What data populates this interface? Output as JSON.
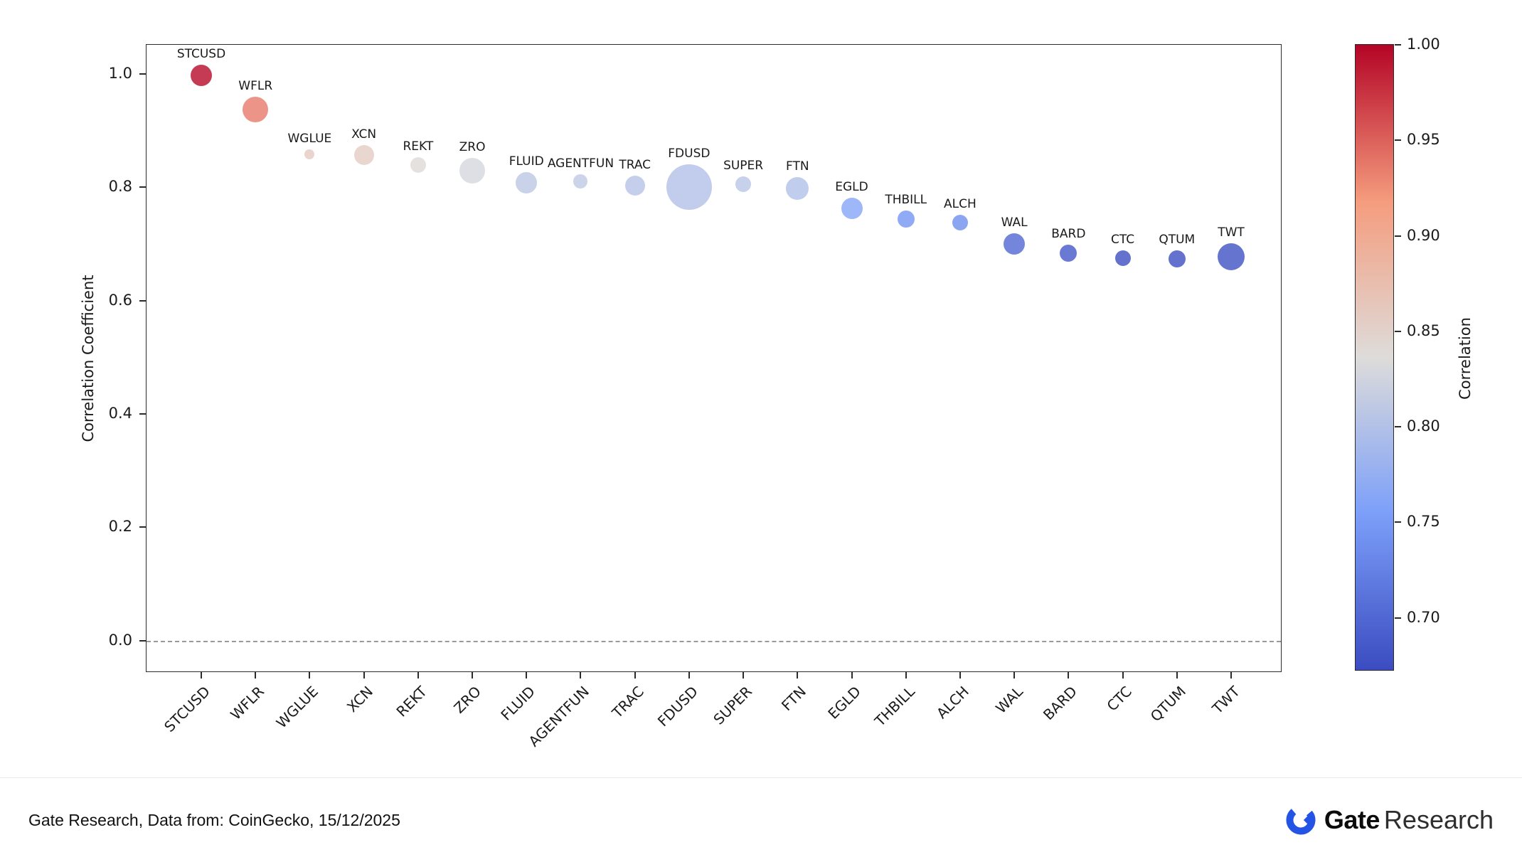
{
  "chart_data": {
    "type": "scatter",
    "title": "",
    "xlabel": "",
    "ylabel": "Correlation Coefficient",
    "colorbar_label": "Correlation",
    "yticks": [
      0.0,
      0.2,
      0.4,
      0.6,
      0.8,
      1.0
    ],
    "ylim": [
      -0.054,
      1.051
    ],
    "colorbar_ticks": [
      1.0,
      0.95,
      0.9,
      0.85,
      0.8,
      0.75,
      0.7
    ],
    "colorbar_range": [
      0.672,
      1.0
    ],
    "zero_reference_line": 0.0,
    "categories": [
      "STCUSD",
      "WFLR",
      "WGLUE",
      "XCN",
      "REKT",
      "ZRO",
      "FLUID",
      "AGENTFUN",
      "TRAC",
      "FDUSD",
      "SUPER",
      "FTN",
      "EGLD",
      "THBILL",
      "ALCH",
      "WAL",
      "BARD",
      "CTC",
      "QTUM",
      "TWT"
    ],
    "points": [
      {
        "label": "STCUSD",
        "value": 0.997,
        "size": 15
      },
      {
        "label": "WFLR",
        "value": 0.937,
        "size": 18
      },
      {
        "label": "WGLUE",
        "value": 0.858,
        "size": 7
      },
      {
        "label": "XCN",
        "value": 0.857,
        "size": 14
      },
      {
        "label": "REKT",
        "value": 0.839,
        "size": 11
      },
      {
        "label": "ZRO",
        "value": 0.829,
        "size": 18
      },
      {
        "label": "FLUID",
        "value": 0.808,
        "size": 15
      },
      {
        "label": "AGENTFUN",
        "value": 0.81,
        "size": 10
      },
      {
        "label": "TRAC",
        "value": 0.803,
        "size": 14
      },
      {
        "label": "FDUSD",
        "value": 0.8,
        "size": 32
      },
      {
        "label": "SUPER",
        "value": 0.805,
        "size": 11
      },
      {
        "label": "FTN",
        "value": 0.798,
        "size": 16
      },
      {
        "label": "EGLD",
        "value": 0.762,
        "size": 15
      },
      {
        "label": "THBILL",
        "value": 0.744,
        "size": 12
      },
      {
        "label": "ALCH",
        "value": 0.737,
        "size": 11
      },
      {
        "label": "WAL",
        "value": 0.7,
        "size": 15
      },
      {
        "label": "BARD",
        "value": 0.684,
        "size": 12
      },
      {
        "label": "CTC",
        "value": 0.675,
        "size": 11
      },
      {
        "label": "QTUM",
        "value": 0.674,
        "size": 12
      },
      {
        "label": "TWT",
        "value": 0.677,
        "size": 19
      }
    ]
  },
  "colors": {
    "cmap": [
      "#3B4CC0",
      "#7C9FF9",
      "#DEDCDA",
      "#F59C7D",
      "#B40426"
    ],
    "zero_line": "#9A9A9A",
    "brand_blue": "#2354E6"
  },
  "footer": {
    "source": "Gate Research, Data from: CoinGecko, 15/12/2025",
    "brand": "Gate",
    "brand_suffix": "Research"
  }
}
